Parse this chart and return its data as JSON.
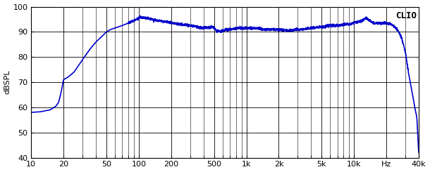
{
  "title": "",
  "ylabel": "dBSPL",
  "xlabel": "Hz",
  "xlim": [
    10,
    40000
  ],
  "ylim": [
    40,
    100
  ],
  "yticks": [
    40,
    50,
    60,
    70,
    80,
    90,
    100
  ],
  "xticks": [
    10,
    20,
    50,
    100,
    200,
    500,
    1000,
    2000,
    5000,
    10000,
    20000,
    40000
  ],
  "xticklabels": [
    "10",
    "20",
    "50",
    "100",
    "200",
    "500",
    "1k",
    "2k",
    "5k",
    "10k",
    "Hz",
    "40k"
  ],
  "line_color": "#0000cc",
  "line_width": 1.2,
  "background_color": "#ffffff",
  "grid_color": "#000000",
  "clio_text": "CLIO",
  "clio_fontsize": 9,
  "ylabel_fontsize": 8,
  "tick_fontsize": 8,
  "keypoints": [
    [
      10,
      58
    ],
    [
      12,
      58.2
    ],
    [
      15,
      59
    ],
    [
      17,
      60.5
    ],
    [
      18,
      62
    ],
    [
      19,
      66
    ],
    [
      20,
      71
    ],
    [
      22,
      72
    ],
    [
      25,
      74
    ],
    [
      28,
      77
    ],
    [
      30,
      79
    ],
    [
      35,
      83
    ],
    [
      40,
      86
    ],
    [
      45,
      88
    ],
    [
      50,
      90
    ],
    [
      55,
      91
    ],
    [
      60,
      91.5
    ],
    [
      70,
      92.5
    ],
    [
      80,
      93.5
    ],
    [
      90,
      94.5
    ],
    [
      100,
      95.5
    ],
    [
      110,
      95.8
    ],
    [
      120,
      95.5
    ],
    [
      130,
      95
    ],
    [
      150,
      94.5
    ],
    [
      180,
      94
    ],
    [
      200,
      93.5
    ],
    [
      250,
      93
    ],
    [
      300,
      92.5
    ],
    [
      350,
      92
    ],
    [
      400,
      91.5
    ],
    [
      450,
      91.8
    ],
    [
      480,
      92
    ],
    [
      500,
      91.5
    ],
    [
      530,
      90.5
    ],
    [
      560,
      90
    ],
    [
      600,
      90.5
    ],
    [
      650,
      91
    ],
    [
      700,
      91
    ],
    [
      800,
      91.5
    ],
    [
      900,
      91.5
    ],
    [
      1000,
      91.5
    ],
    [
      1200,
      91.5
    ],
    [
      1500,
      91
    ],
    [
      2000,
      91
    ],
    [
      2500,
      90.5
    ],
    [
      3000,
      91
    ],
    [
      3500,
      91
    ],
    [
      4000,
      91.5
    ],
    [
      5000,
      92
    ],
    [
      6000,
      92.5
    ],
    [
      7000,
      92.5
    ],
    [
      8000,
      93
    ],
    [
      9000,
      93
    ],
    [
      10000,
      93.5
    ],
    [
      11000,
      94
    ],
    [
      12000,
      94.5
    ],
    [
      13000,
      95.5
    ],
    [
      14000,
      94.5
    ],
    [
      15000,
      93.5
    ],
    [
      16000,
      93.5
    ],
    [
      17000,
      93.5
    ],
    [
      18000,
      93.5
    ],
    [
      19000,
      93.5
    ],
    [
      20000,
      93.5
    ],
    [
      22000,
      93
    ],
    [
      24000,
      92
    ],
    [
      26000,
      90
    ],
    [
      28000,
      87
    ],
    [
      30000,
      82
    ],
    [
      32000,
      74
    ],
    [
      34000,
      68
    ],
    [
      35000,
      65
    ],
    [
      36000,
      62
    ],
    [
      37000,
      59
    ],
    [
      38000,
      57
    ],
    [
      38500,
      55
    ],
    [
      39000,
      50
    ],
    [
      39300,
      47
    ],
    [
      39500,
      45
    ],
    [
      39700,
      43
    ],
    [
      40000,
      42
    ]
  ]
}
